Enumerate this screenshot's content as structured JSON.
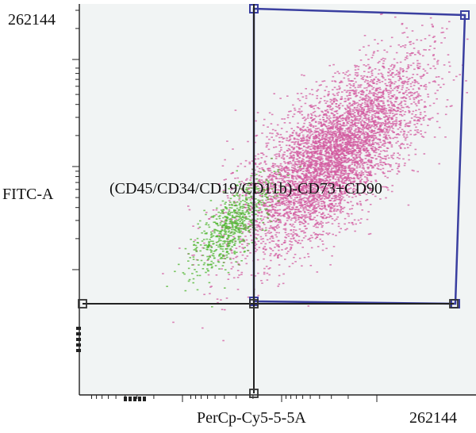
{
  "chart_data": {
    "type": "scatter",
    "title": "",
    "xlabel": "PerCp-Cy5-5-5A",
    "ylabel": "FITC-A",
    "x_max_label": "262144",
    "y_max_label": "262144",
    "x_scale": "log",
    "y_scale": "log",
    "grid": false,
    "gate_label": "(CD45/CD34/CD19/CD11b)-CD73+CD90",
    "series": [
      {
        "name": "",
        "color": "#d2599f",
        "center": [
          0.63,
          0.61
        ],
        "spread": [
          0.14,
          0.1
        ],
        "count": 5200
      },
      {
        "name": "",
        "color": "#4fb52f",
        "center": [
          0.38,
          0.43
        ],
        "spread": [
          0.06,
          0.05
        ],
        "count": 650
      }
    ],
    "colors": {
      "gate": "#3a3fa0",
      "quadrant": "#222222",
      "background": "#f1f4f4"
    }
  }
}
